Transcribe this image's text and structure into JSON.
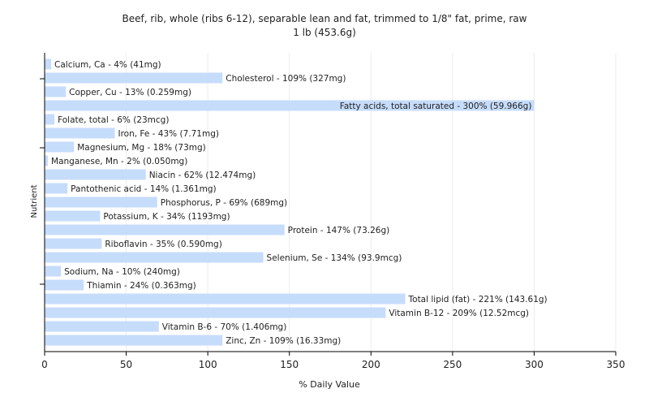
{
  "chart_data": {
    "type": "bar",
    "orientation": "horizontal",
    "title": "Beef, rib, whole (ribs 6-12), separable lean and fat, trimmed to 1/8\" fat, prime, raw",
    "subtitle": "1 lb (453.6g)",
    "xlabel": "% Daily Value",
    "ylabel": "Nutrient",
    "xlim": [
      0,
      350
    ],
    "xticks": [
      "0",
      "50",
      "100",
      "150",
      "200",
      "250",
      "300",
      "350"
    ],
    "grid": true,
    "bar_color": "#c6dcfb",
    "bars": [
      {
        "value": 4,
        "label": "Calcium, Ca - 4% (41mg)"
      },
      {
        "value": 109,
        "label": "Cholesterol - 109% (327mg)"
      },
      {
        "value": 13,
        "label": "Copper, Cu - 13% (0.259mg)"
      },
      {
        "value": 300,
        "label": "Fatty acids, total saturated - 300% (59.966g)"
      },
      {
        "value": 6,
        "label": "Folate, total - 6% (23mcg)"
      },
      {
        "value": 43,
        "label": "Iron, Fe - 43% (7.71mg)"
      },
      {
        "value": 18,
        "label": "Magnesium, Mg - 18% (73mg)"
      },
      {
        "value": 2,
        "label": "Manganese, Mn - 2% (0.050mg)"
      },
      {
        "value": 62,
        "label": "Niacin - 62% (12.474mg)"
      },
      {
        "value": 14,
        "label": "Pantothenic acid - 14% (1.361mg)"
      },
      {
        "value": 69,
        "label": "Phosphorus, P - 69% (689mg)"
      },
      {
        "value": 34,
        "label": "Potassium, K - 34% (1193mg)"
      },
      {
        "value": 147,
        "label": "Protein - 147% (73.26g)"
      },
      {
        "value": 35,
        "label": "Riboflavin - 35% (0.590mg)"
      },
      {
        "value": 134,
        "label": "Selenium, Se - 134% (93.9mcg)"
      },
      {
        "value": 10,
        "label": "Sodium, Na - 10% (240mg)"
      },
      {
        "value": 24,
        "label": "Thiamin - 24% (0.363mg)"
      },
      {
        "value": 221,
        "label": "Total lipid (fat) - 221% (143.61g)"
      },
      {
        "value": 209,
        "label": "Vitamin B-12 - 209% (12.52mcg)"
      },
      {
        "value": 70,
        "label": "Vitamin B-6 - 70% (1.406mg)"
      },
      {
        "value": 109,
        "label": "Zinc, Zn - 109% (16.33mg)"
      }
    ]
  }
}
